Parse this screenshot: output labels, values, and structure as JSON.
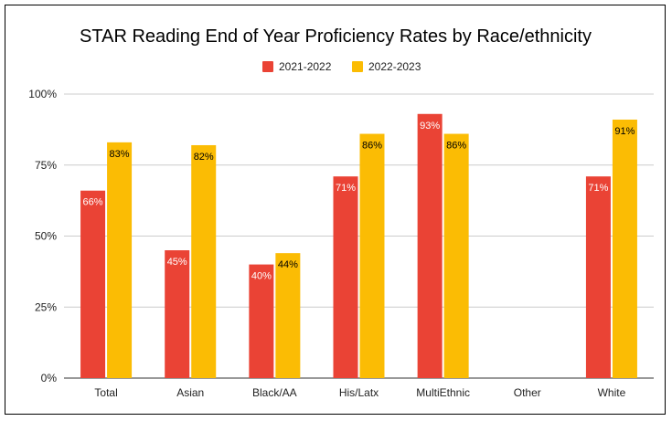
{
  "chart_data": {
    "type": "bar",
    "title": "STAR Reading End of Year Proficiency Rates by Race/ethnicity",
    "categories": [
      "Total",
      "Asian",
      "Black/AA",
      "His/Latx",
      "MultiEthnic",
      "Other",
      "White"
    ],
    "series": [
      {
        "name": "2021-2022",
        "color": "#ea4335",
        "label_color": "#ffffff",
        "values": [
          66,
          45,
          40,
          71,
          93,
          null,
          71
        ],
        "labels": [
          "66%",
          "45%",
          "40%",
          "71%",
          "93%",
          "",
          "71%"
        ]
      },
      {
        "name": "2022-2023",
        "color": "#fbbc04",
        "label_color": "#000000",
        "values": [
          83,
          82,
          44,
          86,
          86,
          null,
          91
        ],
        "labels": [
          "83%",
          "82%",
          "44%",
          "86%",
          "86%",
          "",
          "91%"
        ]
      }
    ],
    "ylim": [
      0,
      100
    ],
    "yticks": [
      0,
      25,
      50,
      75,
      100
    ],
    "ytick_labels": [
      "0%",
      "25%",
      "50%",
      "75%",
      "100%"
    ],
    "xlabel": "",
    "ylabel": "",
    "grid": true,
    "legend": "top-center"
  }
}
